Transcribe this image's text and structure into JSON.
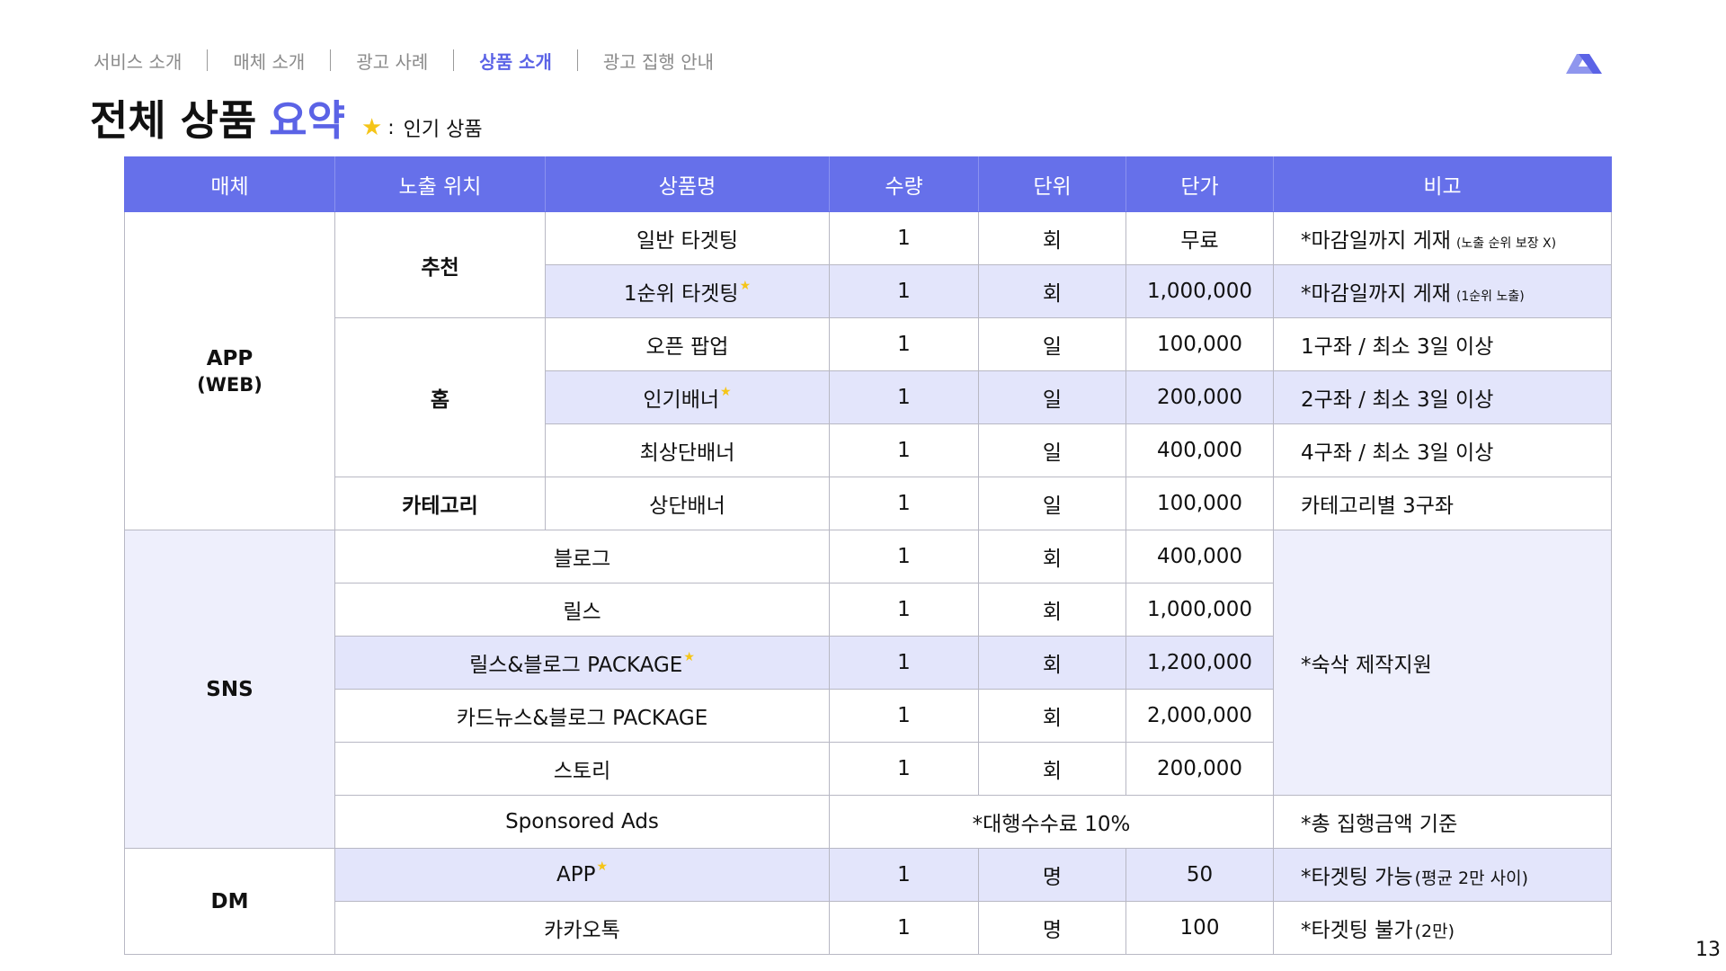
{
  "nav": {
    "items": [
      {
        "label": "서비스 소개",
        "active": false
      },
      {
        "label": "매체 소개",
        "active": false
      },
      {
        "label": "광고 사례",
        "active": false
      },
      {
        "label": "상품 소개",
        "active": true
      },
      {
        "label": "광고 집행 안내",
        "active": false
      }
    ]
  },
  "title": {
    "main": "전체 상품",
    "accent": "요약"
  },
  "legend": {
    "icon": "star-icon",
    "separator": ":",
    "label": "인기 상품"
  },
  "colors": {
    "accent": "#5b63e6",
    "header_bg": "#6670ea",
    "highlight_row": "#e3e5fb",
    "star": "#f5c518"
  },
  "table": {
    "headers": [
      "매체",
      "노출 위치",
      "상품명",
      "수량",
      "단위",
      "단가",
      "비고"
    ],
    "groups": {
      "app": {
        "name": "APP",
        "sub": "(WEB)"
      },
      "sns": {
        "name": "SNS"
      },
      "dm": {
        "name": "DM"
      }
    },
    "positions": {
      "recommend": "추천",
      "home": "홈",
      "category": "카테고리"
    },
    "rows": [
      {
        "product": "일반 타겟팅",
        "qty": "1",
        "unit": "회",
        "price": "무료",
        "note": "*마감일까지 게재",
        "note_small": "(노출 순위 보장 X)"
      },
      {
        "product": "1순위 타겟팅",
        "qty": "1",
        "unit": "회",
        "price": "1,000,000",
        "note": "*마감일까지 게재",
        "note_small": "(1순위 노출)"
      },
      {
        "product": "오픈 팝업",
        "qty": "1",
        "unit": "일",
        "price": "100,000",
        "note": "1구좌 / 최소 3일 이상"
      },
      {
        "product": "인기배너",
        "qty": "1",
        "unit": "일",
        "price": "200,000",
        "note": "2구좌 / 최소 3일 이상"
      },
      {
        "product": "최상단배너",
        "qty": "1",
        "unit": "일",
        "price": "400,000",
        "note": "4구좌 / 최소 3일 이상"
      },
      {
        "product": "상단배너",
        "qty": "1",
        "unit": "일",
        "price": "100,000",
        "note": "카테고리별 3구좌"
      },
      {
        "product": "블로그",
        "qty": "1",
        "unit": "회",
        "price": "400,000"
      },
      {
        "product": "릴스",
        "qty": "1",
        "unit": "회",
        "price": "1,000,000"
      },
      {
        "product": "릴스&블로그 PACKAGE",
        "qty": "1",
        "unit": "회",
        "price": "1,200,000"
      },
      {
        "product": "카드뉴스&블로그 PACKAGE",
        "qty": "1",
        "unit": "회",
        "price": "2,000,000"
      },
      {
        "product": "스토리",
        "qty": "1",
        "unit": "회",
        "price": "200,000"
      },
      {
        "product": "Sponsored Ads",
        "fee": "*대행수수료 10%",
        "note": "*총 집행금액 기준"
      },
      {
        "product": "APP",
        "qty": "1",
        "unit": "명",
        "price": "50",
        "note": "*타겟팅 가능",
        "note_small": "(평균 2만 사이)"
      },
      {
        "product": "카카오톡",
        "qty": "1",
        "unit": "명",
        "price": "100",
        "note": "*타겟팅 불가",
        "note_small": "(2만)"
      }
    ],
    "sns_note": "*숙삭 제작지원"
  },
  "page_number": "13"
}
